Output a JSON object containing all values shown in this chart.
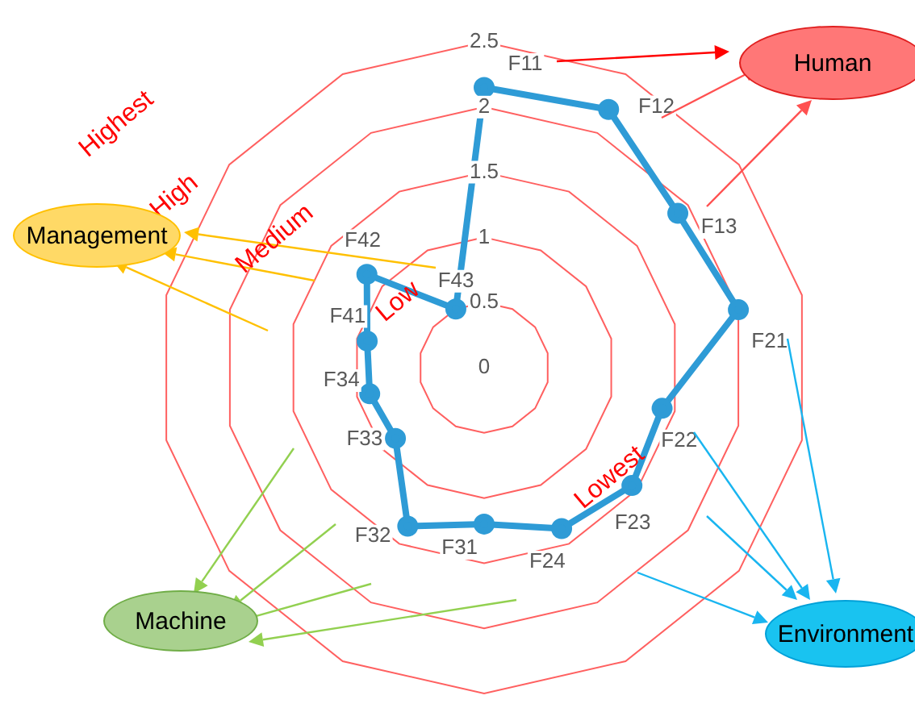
{
  "chart_data": {
    "type": "radar",
    "categories": [
      "F11",
      "F12",
      "F13",
      "F21",
      "F22",
      "F23",
      "F24",
      "F31",
      "F32",
      "F33",
      "F34",
      "F41",
      "F42",
      "F43"
    ],
    "series": [
      {
        "color": "#2e9bd6",
        "values": [
          2.15,
          2.2,
          1.9,
          2.0,
          1.4,
          1.45,
          1.37,
          1.2,
          1.35,
          0.87,
          0.9,
          0.92,
          1.15,
          0.5
        ]
      }
    ],
    "ylim": [
      0,
      2.5
    ],
    "yticks": [
      0,
      0.5,
      1,
      1.5,
      2,
      2.5
    ],
    "grid": true,
    "legend": false,
    "marker": "circle",
    "annotations": [
      "Highest",
      "High",
      "Medium",
      "Low",
      "Lowest",
      "Human",
      "Management",
      "Machine",
      "Environment"
    ]
  }
}
